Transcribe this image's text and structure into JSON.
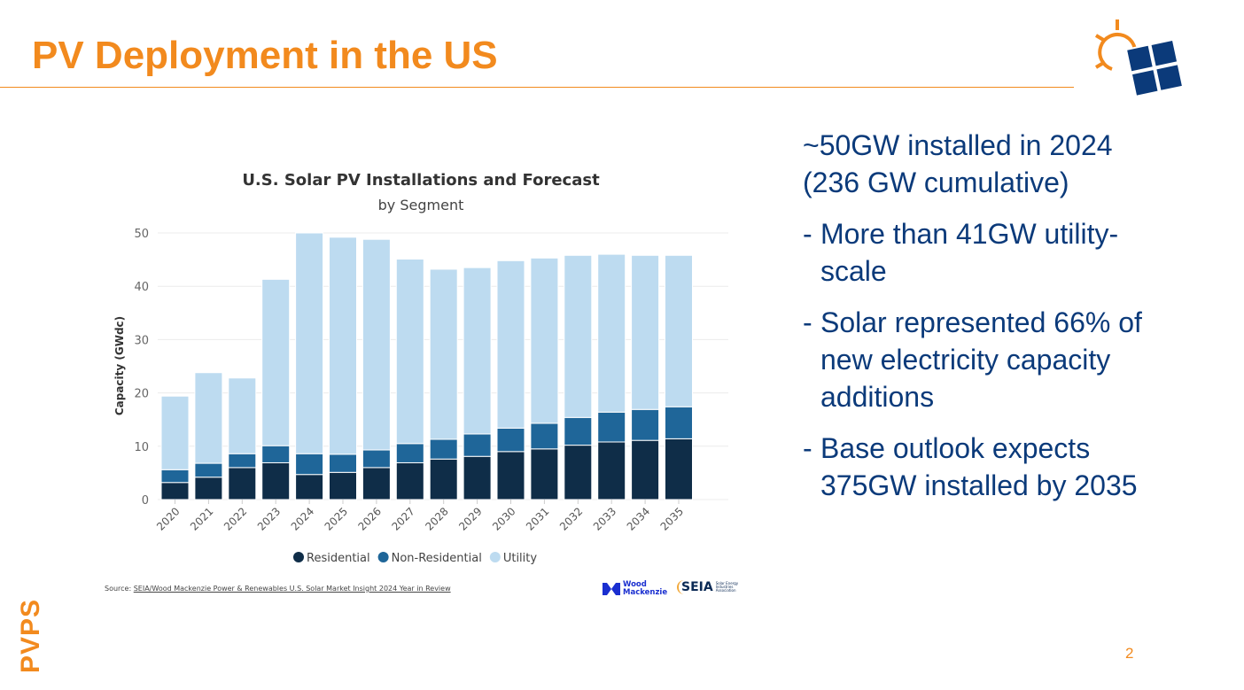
{
  "slide": {
    "title": "PV Deployment in the US",
    "side_label": "PVPS",
    "page_number": "2",
    "accent_color": "#f28a1e",
    "text_color": "#0b3a7a"
  },
  "bullets": {
    "lead_line1": "~50GW installed in 2024",
    "lead_line2": "(236 GW cumulative)",
    "items": [
      {
        "dash": "-",
        "text": "More than 41GW utility-scale"
      },
      {
        "dash": "-",
        "text": "Solar represented 66% of new electricity capacity additions"
      },
      {
        "dash": "-",
        "text": "Base outlook expects 375GW installed by 2035"
      }
    ]
  },
  "source": {
    "prefix": "Source: ",
    "link": "SEIA/Wood Mackenzie Power & Renewables U.S. Solar Market Insight 2024 Year in Review",
    "logo1_line1": "Wood",
    "logo1_line2": "Mackenzie",
    "logo2": "SEIA",
    "logo2_sub": "Solar Energy Industries Association"
  },
  "chart_data": {
    "type": "bar",
    "stacked": true,
    "title": "U.S. Solar PV Installations and Forecast",
    "subtitle": "by Segment",
    "xlabel": "",
    "ylabel": "Capacity (GWdc)",
    "ylim": [
      0,
      50
    ],
    "yticks": [
      0,
      10,
      20,
      30,
      40,
      50
    ],
    "grid": true,
    "legend_position": "bottom",
    "categories": [
      "2020",
      "2021",
      "2022",
      "2023",
      "2024",
      "2025",
      "2026",
      "2027",
      "2028",
      "2029",
      "2030",
      "2031",
      "2032",
      "2033",
      "2034",
      "2035"
    ],
    "series": [
      {
        "name": "Residential",
        "color": "#0f2d48",
        "values": [
          3.2,
          4.2,
          6.0,
          6.9,
          4.7,
          5.1,
          6.0,
          6.9,
          7.6,
          8.1,
          9.0,
          9.5,
          10.2,
          10.8,
          11.1,
          11.4
        ]
      },
      {
        "name": "Non-Residential",
        "color": "#1f6699",
        "values": [
          2.4,
          2.6,
          2.6,
          3.2,
          3.9,
          3.4,
          3.3,
          3.6,
          3.7,
          4.2,
          4.4,
          4.8,
          5.2,
          5.6,
          5.8,
          6.0
        ]
      },
      {
        "name": "Utility",
        "color": "#bddbf0",
        "values": [
          13.8,
          17.0,
          14.2,
          31.2,
          41.4,
          40.7,
          39.5,
          34.6,
          31.9,
          31.2,
          31.4,
          31.0,
          30.4,
          29.6,
          28.9,
          28.4
        ]
      }
    ]
  }
}
